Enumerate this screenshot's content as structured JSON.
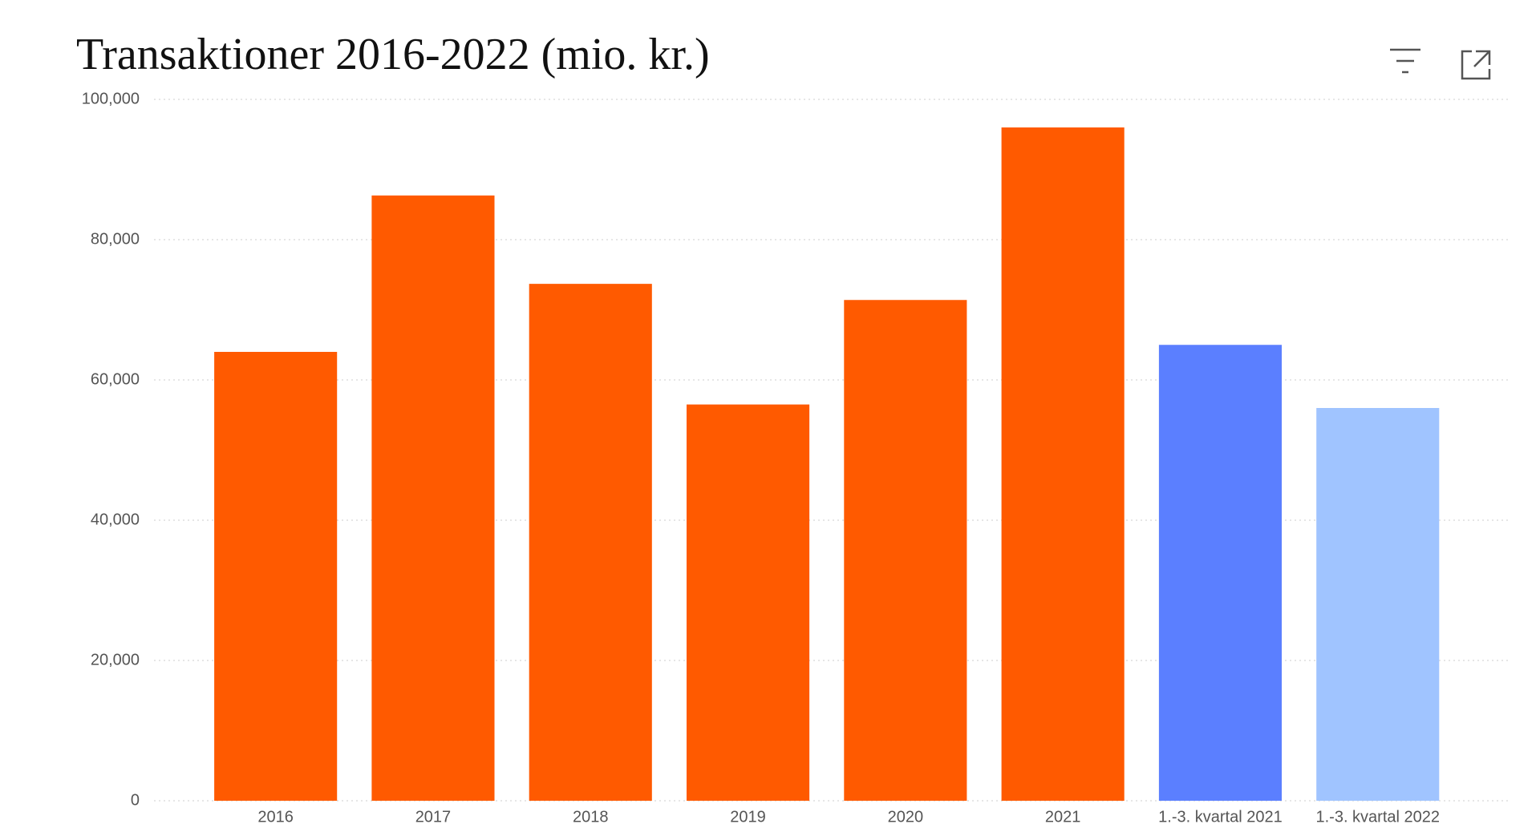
{
  "chart_data": {
    "type": "bar",
    "title": "Transaktioner 2016-2022 (mio. kr.)",
    "categories": [
      "2016",
      "2017",
      "2018",
      "2019",
      "2020",
      "2021",
      "1.-3. kvartal 2021",
      "1.-3. kvartal 2022"
    ],
    "values": [
      64000,
      86300,
      73700,
      56500,
      71400,
      96000,
      65000,
      56000
    ],
    "colors": [
      "#ff5a00",
      "#ff5a00",
      "#ff5a00",
      "#ff5a00",
      "#ff5a00",
      "#ff5a00",
      "#5b7fff",
      "#a0c4ff"
    ],
    "ylim": [
      0,
      100000
    ],
    "yticks": [
      0,
      {
        "value": 20000,
        "label": "20,000"
      },
      {
        "value": 40000,
        "label": "40,000"
      },
      {
        "value": 60000,
        "label": "60,000"
      },
      {
        "value": 80000,
        "label": "80,000"
      },
      {
        "value": 100000,
        "label": "100,000"
      }
    ],
    "grid": true
  }
}
